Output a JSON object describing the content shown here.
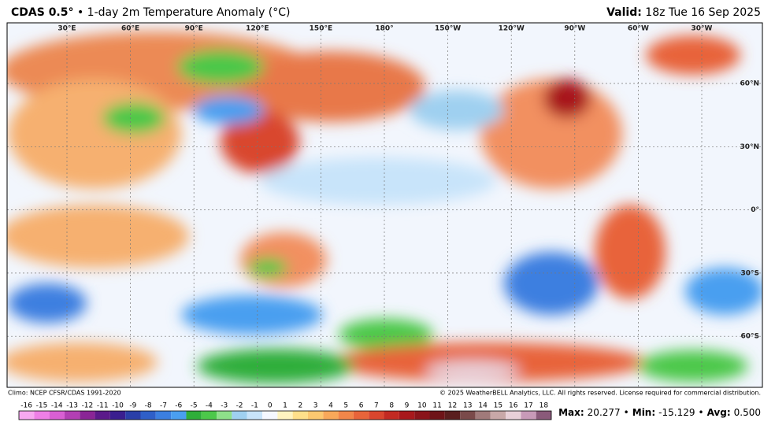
{
  "header": {
    "title_bold": "CDAS 0.5°",
    "title_rest": "• 1-day 2m Temperature Anomaly (°C)",
    "valid_label": "Valid:",
    "valid_value": "18z Tue 16 Sep 2025"
  },
  "map": {
    "lon_labels": [
      "30°E",
      "60°E",
      "90°E",
      "120°E",
      "150°E",
      "180°",
      "150°W",
      "120°W",
      "90°W",
      "60°W",
      "30°W"
    ],
    "lat_labels": [
      "60°N",
      "30°N",
      "0°",
      "30°S",
      "60°S"
    ]
  },
  "footer": {
    "climo": "Climo: NCEP CFSR/CDAS 1991-2020",
    "copyright": "© 2025 WeatherBELL Analytics, LLC. All rights reserved. License required for commercial distribution."
  },
  "colorbar": {
    "ticks": [
      -16,
      -15,
      -14,
      -13,
      -12,
      -11,
      -10,
      -9,
      -8,
      -7,
      -6,
      -5,
      -4,
      -3,
      -2,
      -1,
      0,
      1,
      2,
      3,
      4,
      5,
      6,
      7,
      8,
      9,
      10,
      11,
      12,
      13,
      14,
      15,
      16,
      17,
      18
    ],
    "colors": [
      "#f7a8f0",
      "#ee7fe6",
      "#d95fd3",
      "#b23fb3",
      "#8a2596",
      "#5b1a8a",
      "#3a1f8f",
      "#2a3fa8",
      "#2f5fc8",
      "#3c7fe0",
      "#4a9ff0",
      "#2fae3a",
      "#4cc84a",
      "#8ee08a",
      "#9fd0f0",
      "#c8e4fa",
      "#f5f8ff",
      "#fff4c0",
      "#ffe08a",
      "#fcc870",
      "#f8a85a",
      "#f2864a",
      "#e8643a",
      "#d9462e",
      "#c22a22",
      "#a8181c",
      "#8a141a",
      "#6e1418",
      "#5a1e1e",
      "#7a4a4a",
      "#a07a7a",
      "#c8a8a8",
      "#e8d0d8",
      "#c89ab8",
      "#8a5a7a"
    ]
  },
  "stats": {
    "separator": "•",
    "items": [
      {
        "label": "Max:",
        "value": 20.277
      },
      {
        "label": "Min:",
        "value": -15.129
      },
      {
        "label": "Avg:",
        "value": 0.5,
        "value_label": "0.500"
      }
    ]
  }
}
